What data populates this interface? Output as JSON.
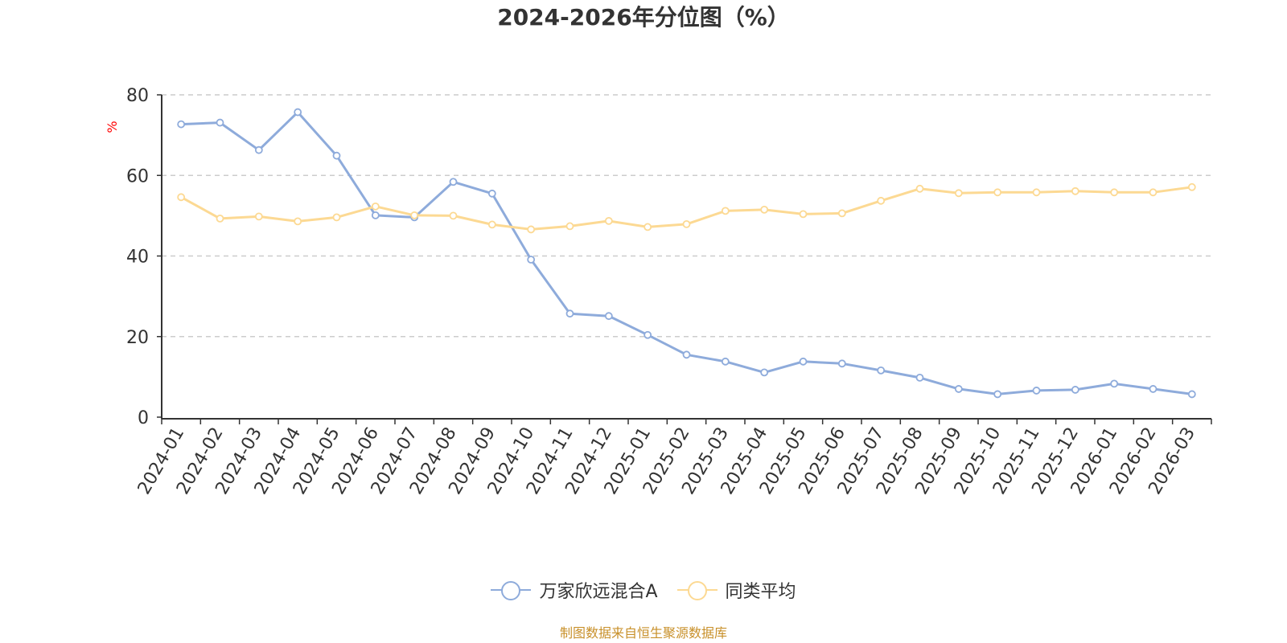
{
  "chart_data": {
    "type": "line",
    "title": "2024-2026年分位图（%）",
    "xlabel": "",
    "ylabel": "%",
    "ylim": [
      0,
      80
    ],
    "yticks": [
      0,
      20,
      40,
      60,
      80
    ],
    "grid": true,
    "legend_position": "bottom",
    "categories": [
      "2024-01",
      "2024-02",
      "2024-03",
      "2024-04",
      "2024-05",
      "2024-06",
      "2024-07",
      "2024-08",
      "2024-09",
      "2024-10",
      "2024-11",
      "2024-12",
      "2025-01",
      "2025-02",
      "2025-03",
      "2025-04",
      "2025-05",
      "2025-06",
      "2025-07",
      "2025-08",
      "2025-09",
      "2025-10",
      "2025-11",
      "2025-12",
      "2026-01",
      "2026-02",
      "2026-03"
    ],
    "series": [
      {
        "name": "万家欣远混合A",
        "color": "#8eabdb",
        "values": [
          72.7,
          73.1,
          66.3,
          75.7,
          64.9,
          50.1,
          49.6,
          58.4,
          55.5,
          39.1,
          25.7,
          25.1,
          20.4,
          15.5,
          13.8,
          11.1,
          13.8,
          13.3,
          11.6,
          9.8,
          7.0,
          5.7,
          6.6,
          6.8,
          8.3,
          7.0,
          5.7
        ]
      },
      {
        "name": "同类平均",
        "color": "#fcd993",
        "values": [
          54.6,
          49.3,
          49.8,
          48.6,
          49.6,
          52.3,
          50.1,
          50.0,
          47.8,
          46.6,
          47.4,
          48.7,
          47.2,
          47.9,
          51.2,
          51.5,
          50.4,
          50.6,
          53.7,
          56.7,
          55.6,
          55.8,
          55.8,
          56.1,
          55.8,
          55.8,
          57.1
        ]
      }
    ]
  },
  "source_note": "制图数据来自恒生聚源数据库"
}
